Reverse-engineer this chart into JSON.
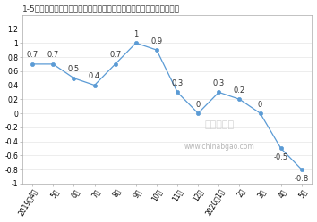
{
  "title": "1-5月泵、阀门、压缩机及类似机械制造工业生产者出厂价格指数同比涨",
  "x_labels": [
    "2019年4月",
    "5月",
    "6月",
    "7月",
    "8月",
    "9月",
    "10月",
    "11月",
    "12月",
    "2020年1月",
    "2月",
    "3月",
    "4月",
    "5月"
  ],
  "y_values": [
    0.7,
    0.7,
    0.5,
    0.4,
    0.7,
    1.0,
    0.9,
    0.3,
    0.0,
    0.3,
    0.2,
    0.0,
    -0.5,
    -0.8
  ],
  "line_color": "#5b9bd5",
  "marker_color": "#5b9bd5",
  "ylim": [
    -1.0,
    1.4
  ],
  "ytick_vals": [
    -1.0,
    -0.8,
    -0.6,
    -0.4,
    -0.2,
    0.0,
    0.2,
    0.4,
    0.6,
    0.8,
    1.0,
    1.2
  ],
  "ytick_labels": [
    "-1",
    "-0.8",
    "-0.6",
    "-0.4",
    "-0.2",
    "0",
    "0.2",
    "0.4",
    "0.6",
    "0.8",
    "1",
    "1.2"
  ],
  "background_color": "#ffffff",
  "grid_color": "#e0e0e0",
  "font_size_title": 6.5,
  "font_size_ticks": 5.5,
  "font_size_data_labels": 6.0,
  "watermark_text": "中国报告厅",
  "watermark_url": "www.chinabgao.com",
  "border_color": "#aaaaaa"
}
